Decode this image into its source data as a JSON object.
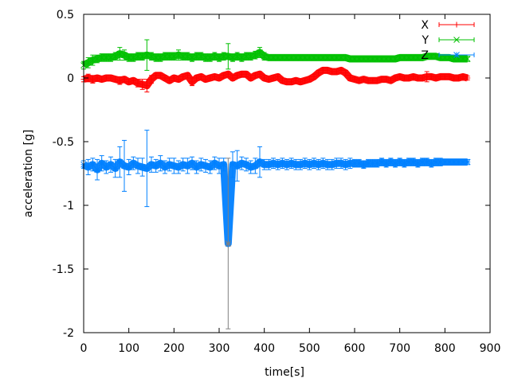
{
  "chart_data": {
    "type": "scatter",
    "title": "",
    "xlabel": "time[s]",
    "ylabel": "acceleration [g]",
    "xlim": [
      0,
      900
    ],
    "ylim": [
      -2,
      0.5
    ],
    "xticks": [
      0,
      100,
      200,
      300,
      400,
      500,
      600,
      700,
      800,
      900
    ],
    "yticks": [
      0.5,
      0,
      -0.5,
      -1,
      -1.5,
      -2
    ],
    "ytick_labels": [
      "0.5",
      "0",
      "-0.5",
      "-1",
      "-1.5",
      "-2"
    ],
    "grid": false,
    "legend": "top-right",
    "x": [
      0,
      10,
      20,
      30,
      40,
      50,
      60,
      70,
      80,
      90,
      100,
      110,
      120,
      130,
      140,
      150,
      160,
      170,
      180,
      190,
      200,
      210,
      220,
      230,
      240,
      250,
      260,
      270,
      280,
      290,
      300,
      310,
      320,
      330,
      340,
      350,
      360,
      370,
      380,
      390,
      400,
      410,
      420,
      430,
      440,
      450,
      460,
      470,
      480,
      490,
      500,
      510,
      520,
      530,
      540,
      550,
      560,
      570,
      580,
      590,
      600,
      610,
      620,
      630,
      640,
      650,
      660,
      670,
      680,
      690,
      700,
      710,
      720,
      730,
      740,
      750,
      760,
      770,
      780,
      790,
      800,
      810,
      820,
      830,
      840,
      850
    ],
    "series": [
      {
        "name": "X",
        "color": "#ff0000",
        "marker": "plus",
        "values": [
          -0.01,
          0.0,
          -0.01,
          0.0,
          -0.01,
          0.0,
          0.0,
          -0.01,
          -0.02,
          -0.01,
          -0.03,
          -0.02,
          -0.04,
          -0.05,
          -0.06,
          -0.01,
          0.02,
          0.02,
          0.0,
          -0.02,
          0.0,
          -0.01,
          0.01,
          0.02,
          -0.03,
          0.0,
          0.01,
          -0.01,
          0.0,
          0.01,
          0.0,
          0.02,
          0.03,
          0.0,
          0.02,
          0.03,
          0.03,
          0.0,
          0.02,
          0.03,
          0.0,
          -0.01,
          0.0,
          0.01,
          -0.02,
          -0.03,
          -0.03,
          -0.02,
          -0.03,
          -0.02,
          -0.01,
          0.01,
          0.04,
          0.06,
          0.06,
          0.05,
          0.05,
          0.06,
          0.04,
          0.0,
          -0.01,
          -0.02,
          -0.01,
          -0.02,
          -0.02,
          -0.02,
          -0.01,
          -0.01,
          -0.02,
          0.0,
          0.01,
          0.0,
          0.0,
          0.01,
          0.0,
          0.0,
          0.01,
          0.01,
          0.0,
          0.01,
          0.01,
          0.01,
          0.0,
          0.0,
          0.01,
          0.0
        ],
        "errors": [
          0.02,
          0.03,
          0.03,
          0.02,
          0.02,
          0.02,
          0.02,
          0.02,
          0.03,
          0.02,
          0.02,
          0.02,
          0.03,
          0.04,
          0.05,
          0.03,
          0.02,
          0.02,
          0.02,
          0.02,
          0.02,
          0.02,
          0.02,
          0.02,
          0.03,
          0.02,
          0.02,
          0.02,
          0.02,
          0.02,
          0.02,
          0.02,
          0.02,
          0.02,
          0.02,
          0.02,
          0.02,
          0.02,
          0.02,
          0.02,
          0.02,
          0.02,
          0.02,
          0.02,
          0.02,
          0.02,
          0.02,
          0.02,
          0.02,
          0.02,
          0.02,
          0.02,
          0.02,
          0.02,
          0.02,
          0.02,
          0.02,
          0.02,
          0.02,
          0.02,
          0.015,
          0.015,
          0.015,
          0.015,
          0.015,
          0.015,
          0.015,
          0.015,
          0.015,
          0.015,
          0.015,
          0.015,
          0.015,
          0.015,
          0.015,
          0.02,
          0.04,
          0.015,
          0.015,
          0.015,
          0.015,
          0.015,
          0.015,
          0.015,
          0.015,
          0.015
        ]
      },
      {
        "name": "Y",
        "color": "#00c000",
        "marker": "cross",
        "values": [
          0.1,
          0.12,
          0.14,
          0.15,
          0.16,
          0.16,
          0.16,
          0.17,
          0.19,
          0.18,
          0.16,
          0.16,
          0.17,
          0.17,
          0.18,
          0.17,
          0.16,
          0.16,
          0.17,
          0.17,
          0.17,
          0.18,
          0.17,
          0.17,
          0.16,
          0.17,
          0.17,
          0.16,
          0.16,
          0.17,
          0.16,
          0.17,
          0.17,
          0.16,
          0.17,
          0.16,
          0.17,
          0.17,
          0.18,
          0.2,
          0.17,
          0.16,
          0.16,
          0.16,
          0.16,
          0.16,
          0.16,
          0.16,
          0.16,
          0.16,
          0.16,
          0.16,
          0.16,
          0.16,
          0.16,
          0.16,
          0.16,
          0.16,
          0.16,
          0.15,
          0.15,
          0.15,
          0.15,
          0.15,
          0.15,
          0.15,
          0.15,
          0.15,
          0.15,
          0.15,
          0.16,
          0.16,
          0.16,
          0.16,
          0.16,
          0.16,
          0.17,
          0.17,
          0.17,
          0.16,
          0.16,
          0.16,
          0.15,
          0.15,
          0.15,
          0.15
        ],
        "errors": [
          0.03,
          0.04,
          0.04,
          0.03,
          0.03,
          0.03,
          0.03,
          0.03,
          0.05,
          0.04,
          0.03,
          0.03,
          0.03,
          0.03,
          0.12,
          0.03,
          0.03,
          0.03,
          0.03,
          0.03,
          0.03,
          0.04,
          0.03,
          0.03,
          0.03,
          0.03,
          0.03,
          0.03,
          0.03,
          0.03,
          0.03,
          0.03,
          0.1,
          0.03,
          0.03,
          0.03,
          0.03,
          0.03,
          0.03,
          0.04,
          0.03,
          0.02,
          0.02,
          0.02,
          0.02,
          0.02,
          0.02,
          0.02,
          0.02,
          0.02,
          0.02,
          0.02,
          0.02,
          0.02,
          0.02,
          0.02,
          0.02,
          0.02,
          0.02,
          0.02,
          0.02,
          0.02,
          0.02,
          0.02,
          0.02,
          0.02,
          0.02,
          0.02,
          0.02,
          0.02,
          0.02,
          0.02,
          0.02,
          0.02,
          0.02,
          0.02,
          0.02,
          0.02,
          0.02,
          0.02,
          0.02,
          0.02,
          0.02,
          0.02,
          0.02,
          0.02
        ]
      },
      {
        "name": "Z",
        "color": "#0080ff",
        "marker": "star",
        "values": [
          -0.68,
          -0.7,
          -0.68,
          -0.72,
          -0.67,
          -0.7,
          -0.68,
          -0.71,
          -0.66,
          -0.69,
          -0.7,
          -0.67,
          -0.69,
          -0.7,
          -0.71,
          -0.68,
          -0.69,
          -0.67,
          -0.7,
          -0.68,
          -0.69,
          -0.7,
          -0.68,
          -0.69,
          -0.67,
          -0.7,
          -0.68,
          -0.69,
          -0.7,
          -0.67,
          -0.69,
          -0.68,
          -1.3,
          -0.68,
          -0.69,
          -0.67,
          -0.68,
          -0.7,
          -0.69,
          -0.66,
          -0.68,
          -0.68,
          -0.67,
          -0.68,
          -0.67,
          -0.68,
          -0.67,
          -0.68,
          -0.68,
          -0.67,
          -0.68,
          -0.67,
          -0.68,
          -0.67,
          -0.68,
          -0.68,
          -0.67,
          -0.67,
          -0.68,
          -0.67,
          -0.67,
          -0.67,
          -0.68,
          -0.67,
          -0.67,
          -0.67,
          -0.66,
          -0.67,
          -0.66,
          -0.67,
          -0.66,
          -0.67,
          -0.66,
          -0.66,
          -0.67,
          -0.66,
          -0.66,
          -0.67,
          -0.66,
          -0.66,
          -0.66,
          -0.66,
          -0.66,
          -0.66,
          -0.66,
          -0.66
        ],
        "errors": [
          0.03,
          0.06,
          0.05,
          0.08,
          0.06,
          0.05,
          0.06,
          0.07,
          0.12,
          0.2,
          0.06,
          0.05,
          0.06,
          0.07,
          0.3,
          0.06,
          0.05,
          0.06,
          0.05,
          0.05,
          0.06,
          0.05,
          0.05,
          0.06,
          0.05,
          0.05,
          0.05,
          0.05,
          0.05,
          0.05,
          0.06,
          0.05,
          0.67,
          0.1,
          0.12,
          0.05,
          0.05,
          0.05,
          0.06,
          0.12,
          0.04,
          0.04,
          0.04,
          0.04,
          0.04,
          0.04,
          0.04,
          0.04,
          0.04,
          0.04,
          0.04,
          0.04,
          0.04,
          0.04,
          0.04,
          0.04,
          0.04,
          0.04,
          0.04,
          0.04,
          0.03,
          0.03,
          0.03,
          0.03,
          0.03,
          0.03,
          0.03,
          0.03,
          0.03,
          0.03,
          0.03,
          0.03,
          0.03,
          0.03,
          0.03,
          0.03,
          0.03,
          0.03,
          0.03,
          0.03,
          0.02,
          0.02,
          0.02,
          0.02,
          0.02,
          0.02
        ]
      }
    ]
  }
}
